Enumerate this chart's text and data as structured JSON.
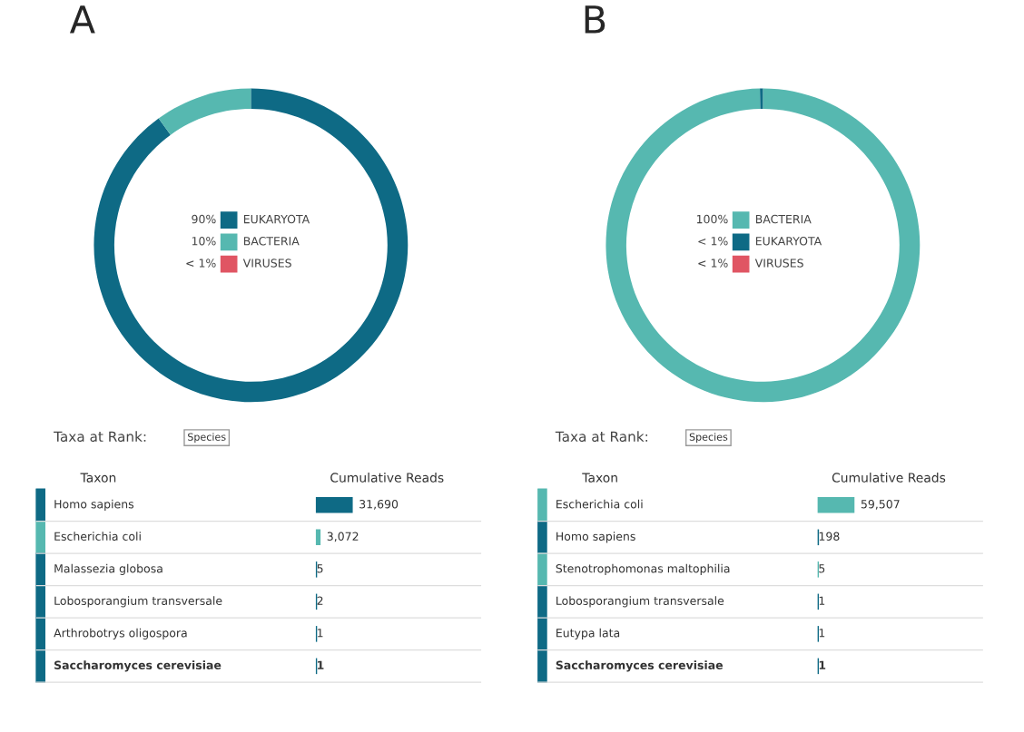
{
  "chart_data": [
    {
      "type": "donut",
      "title": "A",
      "categories": [
        "EUKARYOTA",
        "BACTERIA",
        "VIRUSES"
      ],
      "values": [
        90,
        10,
        0
      ],
      "colors": [
        "#0e6a85",
        "#56b8b0",
        "#e05563"
      ],
      "value_labels": [
        "90%",
        "10%",
        "< 1%"
      ],
      "legend": "center"
    },
    {
      "type": "donut",
      "title": "B",
      "categories": [
        "BACTERIA",
        "EUKARYOTA",
        "VIRUSES"
      ],
      "values": [
        99.7,
        0.3,
        0
      ],
      "colors": [
        "#56b8b0",
        "#0e6a85",
        "#e05563"
      ],
      "value_labels": [
        "100%",
        "< 1%",
        "< 1%"
      ],
      "legend": "center"
    },
    {
      "type": "other",
      "title": "Taxa at Rank:",
      "subtitle": "Species",
      "xlabel": "Cumulative Reads",
      "ylabel": "Taxon",
      "categories": [
        "Homo sapiens",
        "Escherichia coli",
        "Malassezia globosa",
        "Lobosporangium transversale",
        "Arthrobotrys oligospora",
        "Saccharomyces cerevisiae"
      ],
      "values": [
        31690,
        3072,
        5,
        2,
        1,
        1
      ],
      "colors": [
        "#0e6a85",
        "#56b8b0",
        "#0e6a85",
        "#0e6a85",
        "#0e6a85",
        "#0e6a85"
      ],
      "value_labels": [
        "31,690",
        "3,072",
        "5",
        "2",
        "1",
        "1"
      ]
    },
    {
      "type": "other",
      "title": "Taxa at Rank:",
      "subtitle": "Species",
      "xlabel": "Cumulative Reads",
      "ylabel": "Taxon",
      "categories": [
        "Escherichia coli",
        "Homo sapiens",
        "Stenotrophomonas maltophilia",
        "Lobosporangium transversale",
        "Eutypa lata",
        "Saccharomyces cerevisiae"
      ],
      "values": [
        59507,
        198,
        5,
        1,
        1,
        1
      ],
      "colors": [
        "#56b8b0",
        "#0e6a85",
        "#56b8b0",
        "#0e6a85",
        "#0e6a85",
        "#0e6a85"
      ],
      "value_labels": [
        "59,507",
        "198",
        "5",
        "1",
        "1",
        "1"
      ]
    }
  ]
}
